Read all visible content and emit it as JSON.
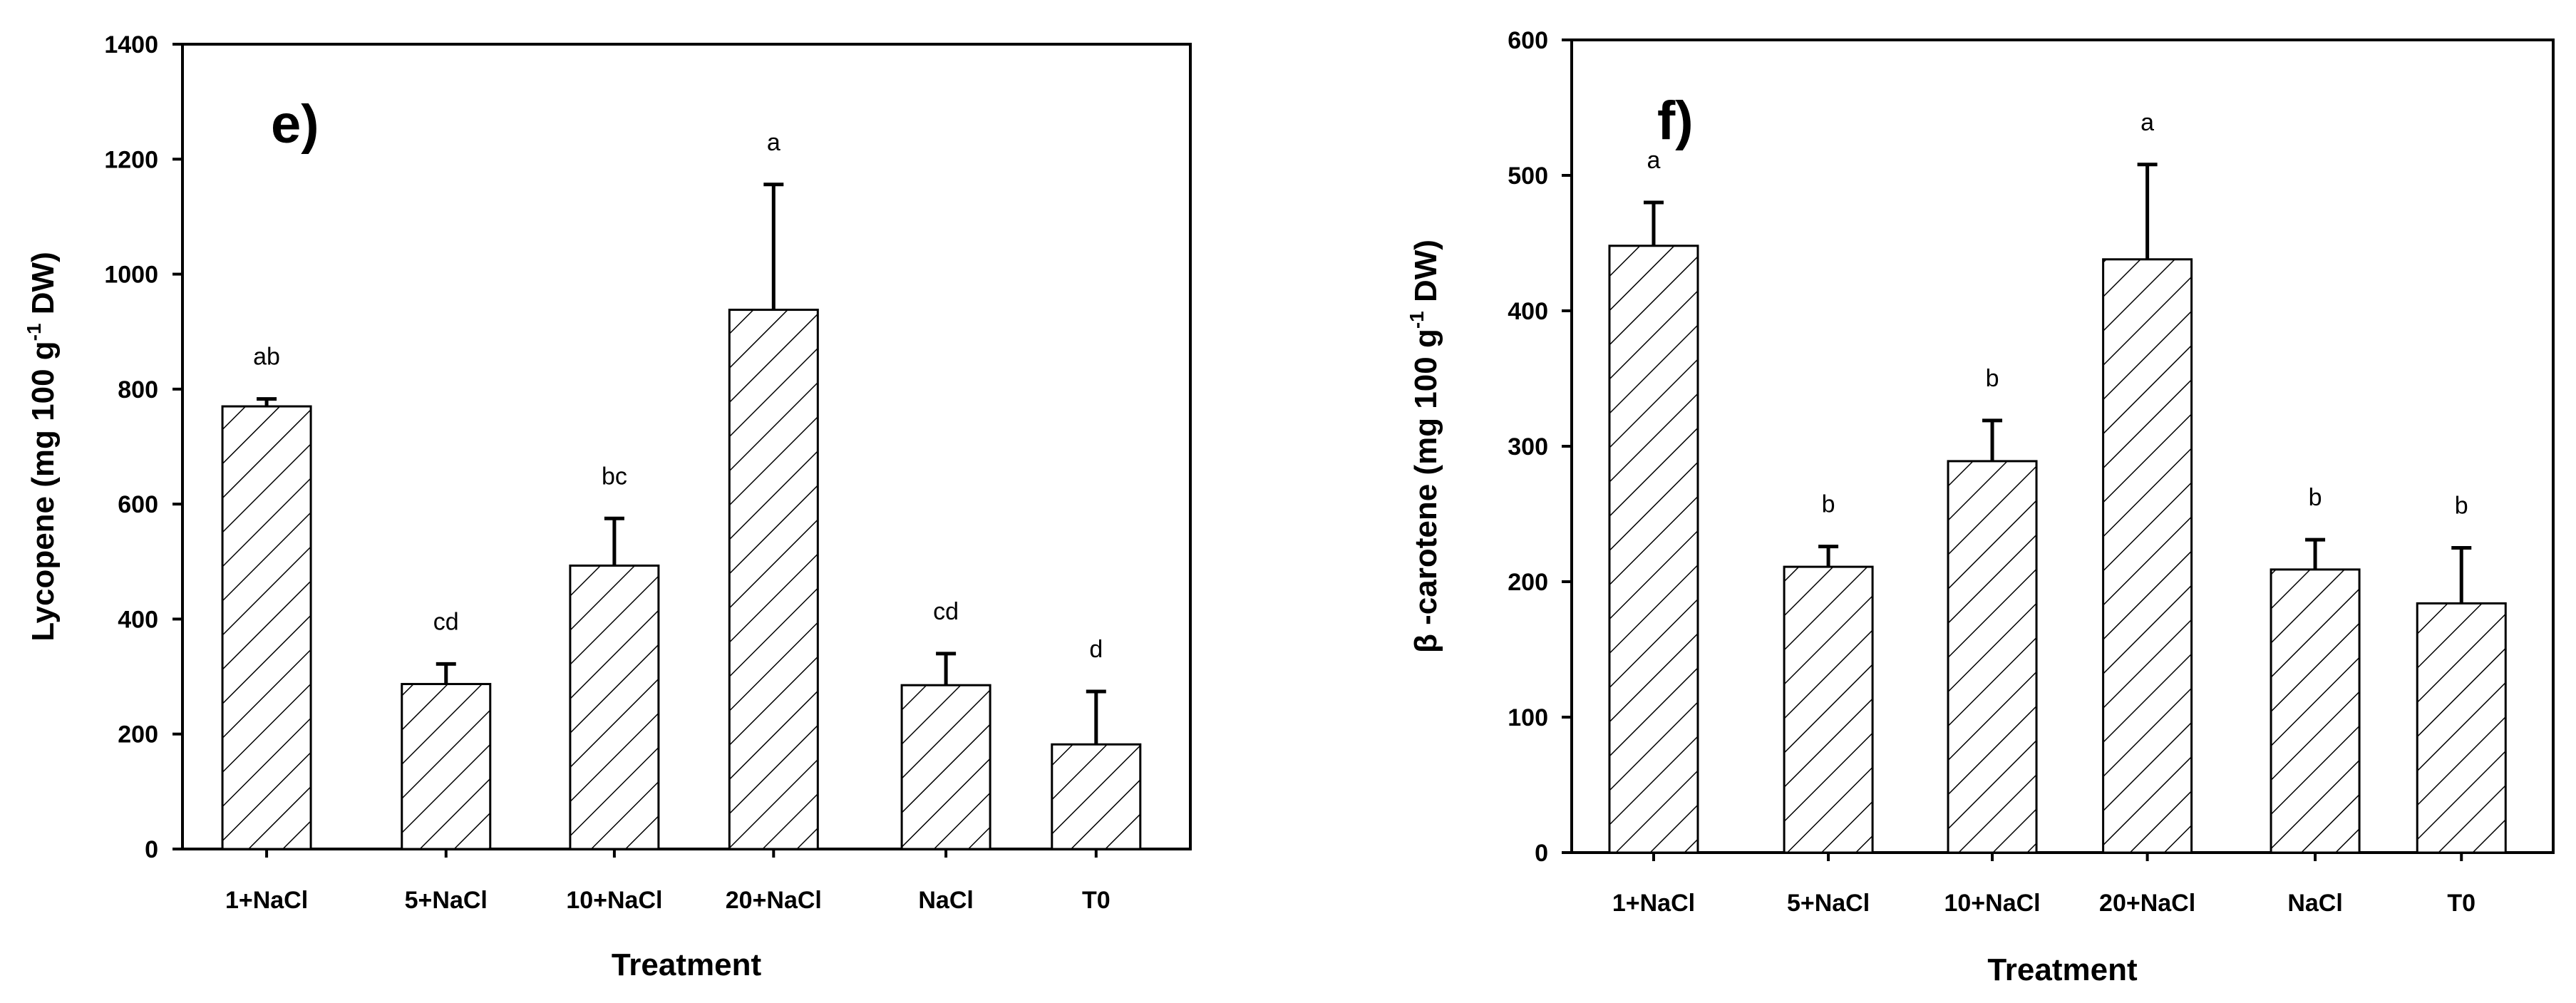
{
  "chart_data": [
    {
      "type": "bar",
      "panel_label": "e)",
      "categories": [
        "1+NaCl",
        "5+NaCl",
        "10+NaCl",
        "20+NaCl",
        "NaCl",
        "T0"
      ],
      "values": [
        770,
        287,
        493,
        938,
        285,
        182
      ],
      "error": [
        13,
        35,
        82,
        218,
        55,
        92
      ],
      "significance": [
        "ab",
        "cd",
        "bc",
        "a",
        "cd",
        "d"
      ],
      "xlabel": "Treatment",
      "ylabel": "Lycopene (mg 100 g",
      "ylabel_sup": "-1",
      "ylabel_tail": " DW)",
      "ylim": [
        0,
        1400
      ],
      "yticks": [
        0,
        200,
        400,
        600,
        800,
        1000,
        1200,
        1400
      ],
      "bar_pattern": "diagonal-hatch",
      "grid": false
    },
    {
      "type": "bar",
      "panel_label": "f)",
      "categories": [
        "1+NaCl",
        "5+NaCl",
        "10+NaCl",
        "20+NaCl",
        "NaCl",
        "T0"
      ],
      "values": [
        448,
        211,
        289,
        438,
        209,
        184
      ],
      "error": [
        32,
        15,
        30,
        70,
        22,
        41
      ],
      "significance": [
        "a",
        "b",
        "b",
        "a",
        "b",
        "b"
      ],
      "xlabel": "Treatment",
      "ylabel": "β -carotene (mg 100 g",
      "ylabel_sup": "-1",
      "ylabel_tail": " DW)",
      "ylim": [
        0,
        600
      ],
      "yticks": [
        0,
        100,
        200,
        300,
        400,
        500,
        600
      ],
      "bar_pattern": "diagonal-hatch",
      "grid": false
    }
  ]
}
